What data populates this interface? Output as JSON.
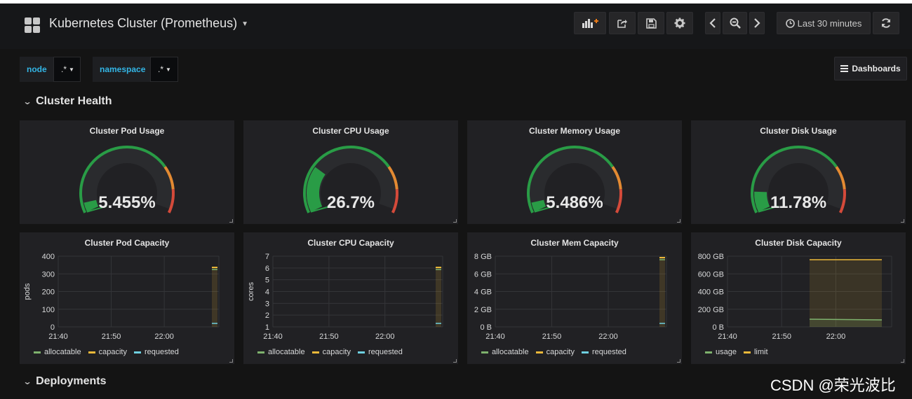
{
  "header": {
    "title": "Kubernetes Cluster (Prometheus)",
    "time_range": "Last 30 minutes"
  },
  "variables": [
    {
      "label": "node",
      "value": ".*"
    },
    {
      "label": "namespace",
      "value": ".*"
    }
  ],
  "dashboards_button": "Dashboards",
  "rows": [
    {
      "title": "Cluster Health"
    },
    {
      "title": "Deployments"
    }
  ],
  "colors": {
    "green": "#299c46",
    "orange": "#e38a32",
    "red": "#d44a3a",
    "blue": "#6ed0e0",
    "yellow": "#eab839",
    "legend_green": "#7eb26d"
  },
  "gauges": [
    {
      "title": "Cluster Pod Usage",
      "value": "5.455%",
      "percent": 5.455
    },
    {
      "title": "Cluster CPU Usage",
      "value": "26.7%",
      "percent": 26.7
    },
    {
      "title": "Cluster Memory Usage",
      "value": "5.486%",
      "percent": 5.486
    },
    {
      "title": "Cluster Disk Usage",
      "value": "11.78%",
      "percent": 11.78
    }
  ],
  "graphs": [
    {
      "title": "Cluster Pod Capacity",
      "ylabel": "pods",
      "yticks": [
        "400",
        "300",
        "200",
        "100",
        "0"
      ],
      "xticks": [
        "21:40",
        "21:50",
        "22:00"
      ],
      "legend": [
        {
          "name": "allocatable",
          "color": "#7eb26d"
        },
        {
          "name": "capacity",
          "color": "#eab839"
        },
        {
          "name": "requested",
          "color": "#6ed0e0"
        }
      ]
    },
    {
      "title": "Cluster CPU Capacity",
      "ylabel": "cores",
      "yticks": [
        "7",
        "6",
        "5",
        "4",
        "3",
        "2",
        "1"
      ],
      "xticks": [
        "21:40",
        "21:50",
        "22:00"
      ],
      "legend": [
        {
          "name": "allocatable",
          "color": "#7eb26d"
        },
        {
          "name": "capacity",
          "color": "#eab839"
        },
        {
          "name": "requested",
          "color": "#6ed0e0"
        }
      ]
    },
    {
      "title": "Cluster Mem Capacity",
      "ylabel": "",
      "yticks": [
        "8 GB",
        "6 GB",
        "4 GB",
        "2 GB",
        "0 B"
      ],
      "xticks": [
        "21:40",
        "21:50",
        "22:00"
      ],
      "legend": [
        {
          "name": "allocatable",
          "color": "#7eb26d"
        },
        {
          "name": "capacity",
          "color": "#eab839"
        },
        {
          "name": "requested",
          "color": "#6ed0e0"
        }
      ]
    },
    {
      "title": "Cluster Disk Capacity",
      "ylabel": "",
      "yticks": [
        "800 GB",
        "600 GB",
        "400 GB",
        "200 GB",
        "0 B"
      ],
      "xticks": [
        "21:40",
        "21:50",
        "22:00"
      ],
      "legend": [
        {
          "name": "usage",
          "color": "#7eb26d"
        },
        {
          "name": "limit",
          "color": "#eab839"
        }
      ]
    }
  ],
  "watermark": "CSDN @荣光波比"
}
